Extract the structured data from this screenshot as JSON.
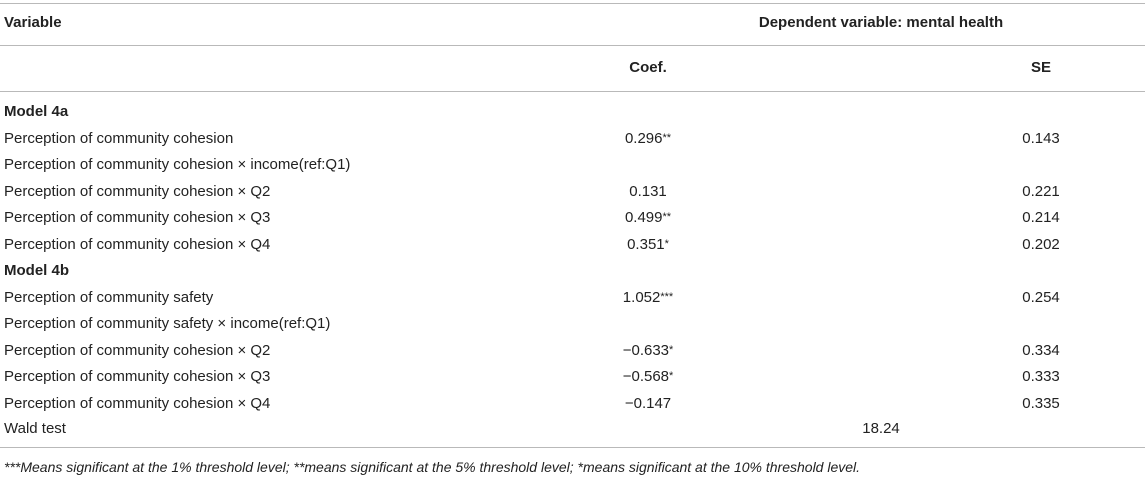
{
  "table": {
    "header": {
      "variable": "Variable",
      "dependent": "Dependent variable: mental health",
      "coef": "Coef.",
      "se": "SE"
    },
    "rows": [
      {
        "type": "section",
        "label": "Model 4a"
      },
      {
        "type": "data",
        "label": "Perception of community cohesion",
        "coef": "0.296",
        "stars": "**",
        "se": "0.143"
      },
      {
        "type": "data",
        "label": "Perception of community cohesion × income(ref:Q1)",
        "coef": "",
        "stars": "",
        "se": ""
      },
      {
        "type": "data",
        "label": "Perception of community cohesion × Q2",
        "coef": "0.131",
        "stars": "",
        "se": "0.221"
      },
      {
        "type": "data",
        "label": "Perception of community cohesion × Q3",
        "coef": "0.499",
        "stars": "**",
        "se": "0.214"
      },
      {
        "type": "data",
        "label": "Perception of community cohesion × Q4",
        "coef": "0.351",
        "stars": "*",
        "se": "0.202"
      },
      {
        "type": "section",
        "label": "Model 4b"
      },
      {
        "type": "data",
        "label": "Perception of community safety",
        "coef": "1.052",
        "stars": "***",
        "se": "0.254"
      },
      {
        "type": "data",
        "label": "Perception of community safety × income(ref:Q1)",
        "coef": "",
        "stars": "",
        "se": ""
      },
      {
        "type": "data",
        "label": "Perception of community cohesion × Q2",
        "coef": "−0.633",
        "stars": "*",
        "se": "0.334"
      },
      {
        "type": "data",
        "label": "Perception of community cohesion × Q3",
        "coef": "−0.568",
        "stars": "*",
        "se": "0.333"
      },
      {
        "type": "data",
        "label": "Perception of community cohesion × Q4",
        "coef": "−0.147",
        "stars": "",
        "se": "0.335"
      }
    ],
    "wald": {
      "label": "Wald test",
      "value": "18.24"
    },
    "footnote": "***Means significant at the 1% threshold level; **means significant at the 5% threshold level; *means significant at the 10% threshold level."
  }
}
